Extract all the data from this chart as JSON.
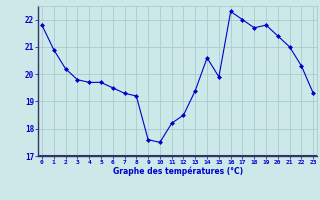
{
  "x": [
    0,
    1,
    2,
    3,
    4,
    5,
    6,
    7,
    8,
    9,
    10,
    11,
    12,
    13,
    14,
    15,
    16,
    17,
    18,
    19,
    20,
    21,
    22,
    23
  ],
  "y": [
    21.8,
    20.9,
    20.2,
    19.8,
    19.7,
    19.7,
    19.5,
    19.3,
    19.2,
    17.6,
    17.5,
    18.2,
    18.5,
    19.4,
    20.6,
    19.9,
    22.3,
    22.0,
    21.7,
    21.8,
    21.4,
    21.0,
    20.3,
    19.3
  ],
  "xlabel": "Graphe des températures (°C)",
  "ylim": [
    17,
    22.5
  ],
  "yticks": [
    17,
    18,
    19,
    20,
    21,
    22
  ],
  "xticks": [
    0,
    1,
    2,
    3,
    4,
    5,
    6,
    7,
    8,
    9,
    10,
    11,
    12,
    13,
    14,
    15,
    16,
    17,
    18,
    19,
    20,
    21,
    22,
    23
  ],
  "line_color": "#0000cc",
  "marker": "D",
  "marker_size": 2.0,
  "bg_color": "#cce8e8",
  "grid_color": "#aacccc",
  "axis_color": "#0000aa",
  "label_color": "#0000cc",
  "spine_color": "#555555"
}
